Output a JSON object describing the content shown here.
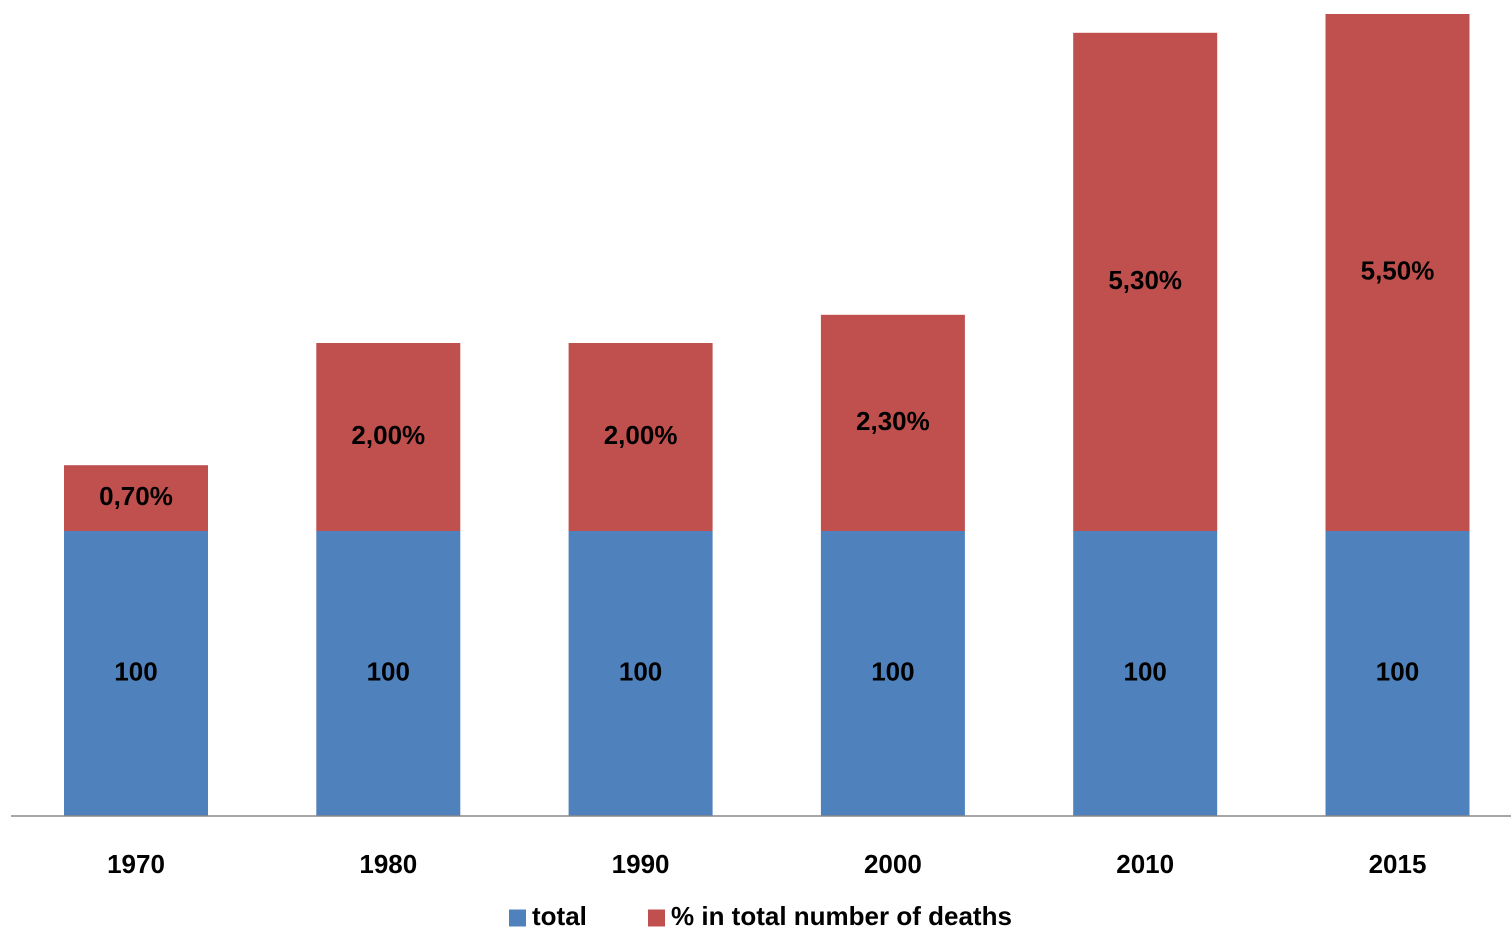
{
  "chart_data": {
    "type": "bar",
    "stacked": true,
    "categories": [
      "1970",
      "1980",
      "1990",
      "2000",
      "2010",
      "2015"
    ],
    "series": [
      {
        "name": "total",
        "color": "#4f81bd",
        "values": [
          100,
          100,
          100,
          100,
          100,
          100
        ],
        "labels": [
          "100",
          "100",
          "100",
          "100",
          "100",
          "100"
        ]
      },
      {
        "name": "% in total number of deaths",
        "color": "#c0504d",
        "values": [
          0.7,
          2.0,
          2.0,
          2.3,
          5.3,
          5.5
        ],
        "labels": [
          "0,70%",
          "2,00%",
          "2,00%",
          "2,30%",
          "5,30%",
          "5,50%"
        ]
      }
    ],
    "title": "",
    "xlabel": "",
    "ylabel": "",
    "grid": false,
    "y_axis_visible": false,
    "legend_position": "bottom"
  }
}
